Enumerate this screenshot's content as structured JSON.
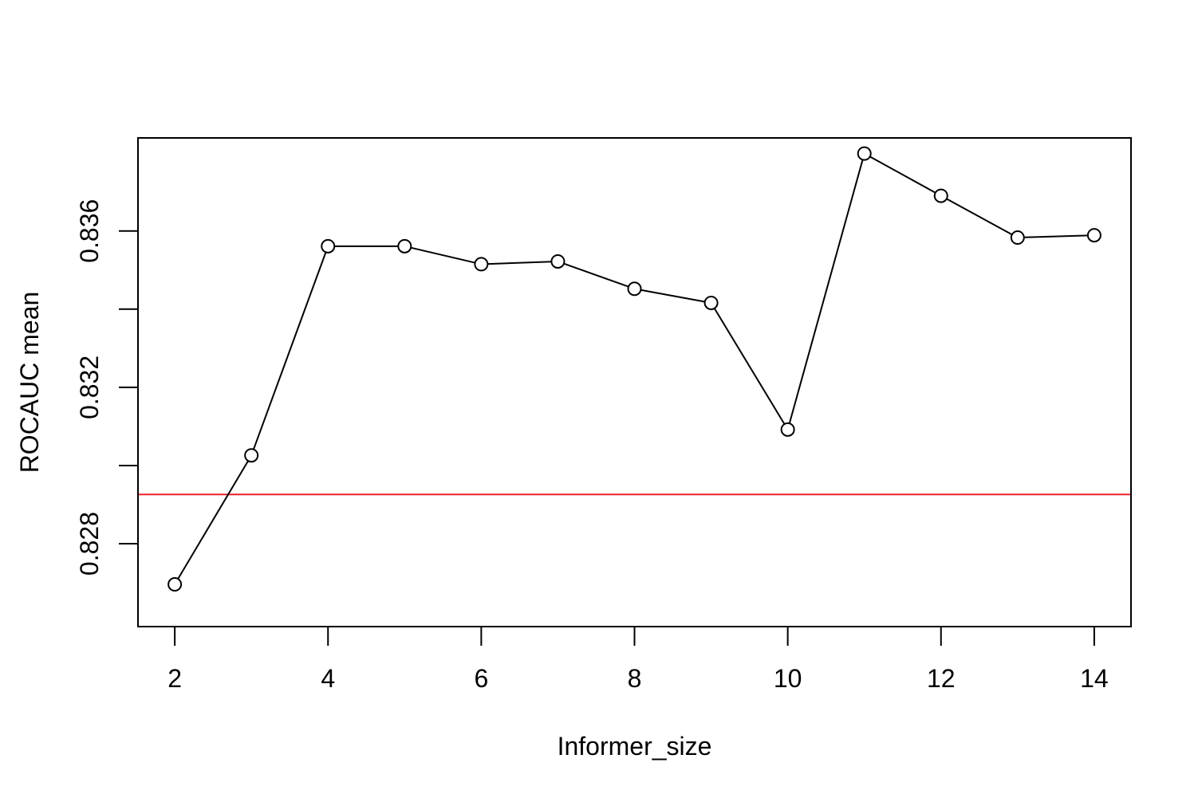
{
  "chart_data": {
    "type": "line",
    "title": "",
    "xlabel": "Informer_size",
    "ylabel": "ROCAUC mean",
    "xlim": [
      1.52,
      14.48
    ],
    "ylim": [
      0.82588,
      0.83838
    ],
    "x_ticks": [
      2,
      4,
      6,
      8,
      10,
      12,
      14
    ],
    "x_tick_labels": [
      "2",
      "4",
      "6",
      "8",
      "10",
      "12",
      "14"
    ],
    "y_ticks": [
      0.828,
      0.83,
      0.832,
      0.834,
      0.836
    ],
    "y_tick_labels": [
      "0.828",
      "",
      "0.832",
      "",
      "0.836"
    ],
    "grid": false,
    "series": [
      {
        "x": [
          2,
          3,
          4,
          5,
          6,
          7,
          8,
          9,
          10,
          11,
          12,
          13,
          14
        ],
        "values": [
          0.82696,
          0.83026,
          0.83561,
          0.83561,
          0.83515,
          0.83522,
          0.83452,
          0.83416,
          0.83092,
          0.83798,
          0.8369,
          0.83583,
          0.83589
        ],
        "color": "#000000",
        "marker": "open-circle"
      }
    ],
    "reference_line": {
      "y": 0.82926,
      "color": "#e8202a"
    }
  }
}
